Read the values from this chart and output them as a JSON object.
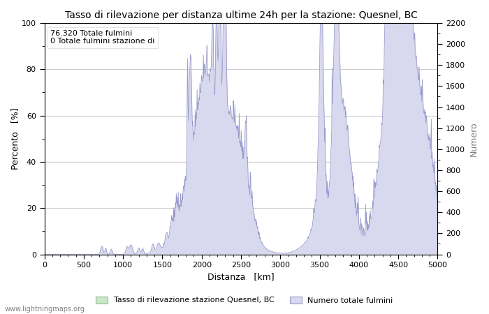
{
  "title": "Tasso di rilevazione per distanza ultime 24h per la stazione: Quesnel, BC",
  "xlabel": "Distanza   [km]",
  "ylabel_left": "Percento   [%]",
  "ylabel_right": "Numero",
  "annotation_line1": "76.320 Totale fulmini",
  "annotation_line2": "0 Totale fulmini stazione di",
  "legend_green": "Tasso di rilevazione stazione Quesnel, BC",
  "legend_blue": "Numero totale fulmini",
  "watermark": "www.lightningmaps.org",
  "xlim": [
    0,
    5000
  ],
  "ylim_left": [
    0,
    100
  ],
  "ylim_right": [
    0,
    2200
  ],
  "xticks": [
    0,
    500,
    1000,
    1500,
    2000,
    2500,
    3000,
    3500,
    4000,
    4500,
    5000
  ],
  "yticks_left": [
    0,
    20,
    40,
    60,
    80,
    100
  ],
  "yticks_right": [
    0,
    200,
    400,
    600,
    800,
    1000,
    1200,
    1400,
    1600,
    1800,
    2000,
    2200
  ],
  "color_blue_line": "#9999cc",
  "color_blue_fill": "#d8d8ee",
  "color_green_fill": "#c8e8c8",
  "color_green_line": "#99bb99",
  "background_color": "#ffffff",
  "grid_color": "#cccccc"
}
